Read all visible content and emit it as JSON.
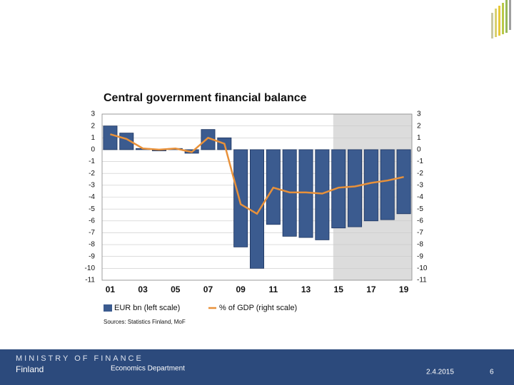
{
  "chart_data": {
    "type": "bar",
    "title": "Central government financial balance",
    "categories": [
      "01",
      null,
      "03",
      null,
      "05",
      null,
      "07",
      null,
      "09",
      null,
      "11",
      null,
      "13",
      null,
      "15",
      null,
      "17",
      null,
      "19"
    ],
    "series": [
      {
        "name": "EUR bn (left scale)",
        "type": "bar",
        "color": "#3b5b8f",
        "values": [
          2.0,
          1.4,
          0.1,
          -0.1,
          0.1,
          -0.3,
          1.7,
          1.0,
          -8.2,
          -10.0,
          -6.3,
          -7.3,
          -7.4,
          -7.6,
          -6.6,
          -6.5,
          -6.0,
          -5.9,
          -5.4
        ]
      },
      {
        "name": "% of GDP (right scale)",
        "type": "line",
        "axis": "y2",
        "color": "#e8913a",
        "values": [
          1.3,
          0.9,
          0.1,
          0.0,
          0.1,
          -0.2,
          1.0,
          0.5,
          -4.6,
          -5.4,
          -3.2,
          -3.6,
          -3.6,
          -3.7,
          -3.2,
          -3.1,
          -2.8,
          -2.6,
          -2.3
        ]
      }
    ],
    "ylim": [
      -11,
      3
    ],
    "yticks": [
      3,
      2,
      1,
      0,
      -1,
      -2,
      -3,
      -4,
      -5,
      -6,
      -7,
      -8,
      -9,
      -10,
      -11
    ],
    "y2lim": [
      -11,
      3
    ],
    "y2ticks": [
      3,
      2,
      1,
      0,
      -1,
      -2,
      -3,
      -4,
      -5,
      -6,
      -7,
      -8,
      -9,
      -10,
      -11
    ],
    "grid": true,
    "legend": "bottom",
    "source": "Sources: Statistics Finland, MoF"
  },
  "footer": {
    "ministry": "MINISTRY OF FINANCE",
    "country": "Finland",
    "department": "Economics Department",
    "date": "2.4.2015",
    "page": "6"
  }
}
